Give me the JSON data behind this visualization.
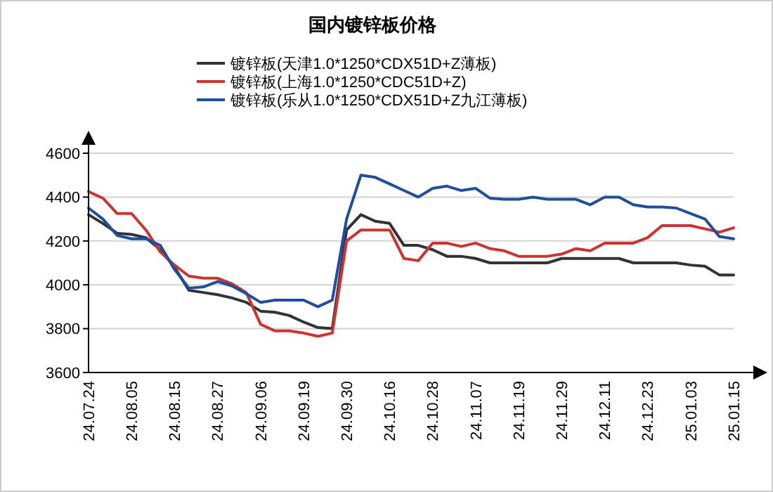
{
  "chart_data": {
    "type": "line",
    "title": "国内镀锌板价格",
    "categories": [
      "24.07.24",
      null,
      null,
      "24.08.05",
      null,
      null,
      "24.08.15",
      null,
      null,
      "24.08.27",
      null,
      null,
      "24.09.06",
      null,
      null,
      "24.09.19",
      null,
      null,
      "24.09.30",
      null,
      null,
      "24.10.16",
      null,
      null,
      "24.10.28",
      null,
      null,
      "24.11.07",
      null,
      null,
      "24.11.19",
      null,
      null,
      "24.11.29",
      null,
      null,
      "24.12.11",
      null,
      null,
      "24.12.23",
      null,
      null,
      "25.01.03",
      null,
      null,
      "25.01.15"
    ],
    "series": [
      {
        "name": "镀锌板(天津1.0*1250*CDX51D+Z薄板)",
        "color": "#333333",
        "values": [
          4320,
          4280,
          4235,
          4230,
          4215,
          4160,
          4080,
          3975,
          3965,
          3955,
          3940,
          3920,
          3880,
          3875,
          3860,
          3830,
          3805,
          3800,
          4250,
          4320,
          4290,
          4280,
          4180,
          4180,
          4160,
          4130,
          4130,
          4120,
          4100,
          4100,
          4100,
          4100,
          4100,
          4120,
          4120,
          4120,
          4120,
          4120,
          4100,
          4100,
          4100,
          4100,
          4090,
          4085,
          4045,
          4045
        ]
      },
      {
        "name": "镀锌板(上海1.0*1250*CDC51D+Z)",
        "color": "#cc3333",
        "values": [
          4425,
          4395,
          4325,
          4325,
          4250,
          4150,
          4090,
          4040,
          4030,
          4030,
          4005,
          3965,
          3820,
          3790,
          3790,
          3780,
          3765,
          3780,
          4200,
          4250,
          4250,
          4250,
          4120,
          4110,
          4190,
          4190,
          4175,
          4190,
          4165,
          4155,
          4130,
          4130,
          4130,
          4140,
          4165,
          4155,
          4190,
          4190,
          4190,
          4215,
          4270,
          4270,
          4270,
          4255,
          4240,
          4260
        ]
      },
      {
        "name": "镀锌板(乐从1.0*1250*CDX51D+Z九江薄板)",
        "color": "#1f4e9c",
        "values": [
          4350,
          4300,
          4225,
          4210,
          4210,
          4180,
          4070,
          3985,
          3990,
          4015,
          3995,
          3960,
          3920,
          3930,
          3930,
          3930,
          3900,
          3930,
          4300,
          4500,
          4490,
          4460,
          4430,
          4400,
          4440,
          4450,
          4430,
          4440,
          4395,
          4390,
          4390,
          4400,
          4390,
          4390,
          4390,
          4365,
          4400,
          4400,
          4365,
          4355,
          4355,
          4350,
          4325,
          4300,
          4220,
          4210
        ]
      }
    ],
    "ylim": [
      3600,
      4600
    ],
    "yticks": [
      3600,
      3800,
      4000,
      4200,
      4400,
      4600
    ],
    "grid": "y",
    "legend": "top",
    "line_style": "solid",
    "marker": "none"
  }
}
